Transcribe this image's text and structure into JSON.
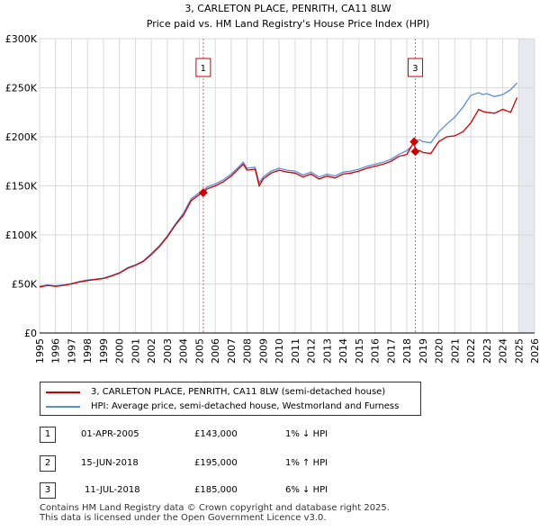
{
  "chart_data": {
    "type": "line",
    "title": "3, CARLETON PLACE, PENRITH, CA11 8LW",
    "subtitle": "Price paid vs. HM Land Registry's House Price Index (HPI)",
    "xlim": [
      1995,
      2026
    ],
    "ylim": [
      0,
      300000
    ],
    "x_ticks": [
      "1995",
      "1996",
      "1997",
      "1998",
      "1999",
      "2000",
      "2001",
      "2002",
      "2003",
      "2004",
      "2005",
      "2006",
      "2007",
      "2008",
      "2009",
      "2010",
      "2011",
      "2012",
      "2013",
      "2014",
      "2015",
      "2016",
      "2017",
      "2018",
      "2019",
      "2020",
      "2021",
      "2022",
      "2023",
      "2024",
      "2025",
      "2026"
    ],
    "y_ticks": [
      {
        "value": 0,
        "label": "£0"
      },
      {
        "value": 50000,
        "label": "£50K"
      },
      {
        "value": 100000,
        "label": "£100K"
      },
      {
        "value": 150000,
        "label": "£150K"
      },
      {
        "value": 200000,
        "label": "£200K"
      },
      {
        "value": 250000,
        "label": "£250K"
      },
      {
        "value": 300000,
        "label": "£300K"
      }
    ],
    "series": [
      {
        "name": "3, CARLETON PLACE, PENRITH, CA11 8LW (semi-detached house)",
        "color": "#cc0000",
        "points": [
          [
            1995.0,
            47000
          ],
          [
            1995.5,
            48500
          ],
          [
            1996.0,
            47500
          ],
          [
            1996.5,
            48500
          ],
          [
            1997.0,
            50000
          ],
          [
            1997.5,
            52000
          ],
          [
            1998.0,
            53500
          ],
          [
            1998.5,
            54500
          ],
          [
            1999.0,
            55500
          ],
          [
            1999.5,
            58000
          ],
          [
            2000.0,
            61000
          ],
          [
            2000.5,
            66000
          ],
          [
            2001.0,
            69000
          ],
          [
            2001.5,
            73000
          ],
          [
            2002.0,
            80000
          ],
          [
            2002.5,
            88000
          ],
          [
            2003.0,
            98000
          ],
          [
            2003.5,
            110000
          ],
          [
            2004.0,
            120000
          ],
          [
            2004.5,
            135000
          ],
          [
            2005.0,
            141000
          ],
          [
            2005.25,
            143000
          ],
          [
            2005.5,
            147000
          ],
          [
            2006.0,
            150000
          ],
          [
            2006.5,
            154000
          ],
          [
            2007.0,
            160000
          ],
          [
            2007.5,
            168000
          ],
          [
            2007.75,
            172000
          ],
          [
            2008.0,
            166000
          ],
          [
            2008.5,
            167000
          ],
          [
            2008.75,
            150000
          ],
          [
            2009.0,
            157000
          ],
          [
            2009.5,
            163000
          ],
          [
            2010.0,
            166000
          ],
          [
            2010.5,
            164000
          ],
          [
            2011.0,
            163000
          ],
          [
            2011.5,
            159000
          ],
          [
            2012.0,
            162000
          ],
          [
            2012.5,
            157000
          ],
          [
            2013.0,
            160000
          ],
          [
            2013.5,
            158000
          ],
          [
            2014.0,
            162000
          ],
          [
            2014.5,
            163000
          ],
          [
            2015.0,
            165000
          ],
          [
            2015.5,
            168000
          ],
          [
            2016.0,
            170000
          ],
          [
            2016.5,
            172000
          ],
          [
            2017.0,
            175000
          ],
          [
            2017.5,
            180000
          ],
          [
            2018.0,
            182000
          ],
          [
            2018.46,
            195000
          ],
          [
            2018.53,
            185000
          ],
          [
            2018.8,
            186000
          ],
          [
            2019.0,
            184000
          ],
          [
            2019.5,
            183000
          ],
          [
            2020.0,
            195000
          ],
          [
            2020.5,
            200000
          ],
          [
            2021.0,
            201000
          ],
          [
            2021.5,
            205000
          ],
          [
            2022.0,
            214000
          ],
          [
            2022.5,
            228000
          ],
          [
            2022.75,
            226000
          ],
          [
            2023.0,
            225000
          ],
          [
            2023.5,
            224000
          ],
          [
            2024.0,
            228000
          ],
          [
            2024.5,
            225000
          ],
          [
            2024.9,
            240000
          ]
        ]
      },
      {
        "name": "HPI: Average price, semi-detached house, Westmorland and Furness",
        "color": "#5b8fd4",
        "points": [
          [
            1995.0,
            47500
          ],
          [
            1995.5,
            49000
          ],
          [
            1996.0,
            48000
          ],
          [
            1996.5,
            49000
          ],
          [
            1997.0,
            50500
          ],
          [
            1997.5,
            52500
          ],
          [
            1998.0,
            54000
          ],
          [
            1998.5,
            55000
          ],
          [
            1999.0,
            56000
          ],
          [
            1999.5,
            58500
          ],
          [
            2000.0,
            61500
          ],
          [
            2000.5,
            66500
          ],
          [
            2001.0,
            69500
          ],
          [
            2001.5,
            73500
          ],
          [
            2002.0,
            81000
          ],
          [
            2002.5,
            89000
          ],
          [
            2003.0,
            99000
          ],
          [
            2003.5,
            111000
          ],
          [
            2004.0,
            122000
          ],
          [
            2004.5,
            137000
          ],
          [
            2005.0,
            143000
          ],
          [
            2005.25,
            145000
          ],
          [
            2005.5,
            149000
          ],
          [
            2006.0,
            152000
          ],
          [
            2006.5,
            156000
          ],
          [
            2007.0,
            162000
          ],
          [
            2007.5,
            170000
          ],
          [
            2007.75,
            174000
          ],
          [
            2008.0,
            168000
          ],
          [
            2008.5,
            169000
          ],
          [
            2008.75,
            153000
          ],
          [
            2009.0,
            159000
          ],
          [
            2009.5,
            165000
          ],
          [
            2010.0,
            168000
          ],
          [
            2010.5,
            166000
          ],
          [
            2011.0,
            165000
          ],
          [
            2011.5,
            161000
          ],
          [
            2012.0,
            164000
          ],
          [
            2012.5,
            159000
          ],
          [
            2013.0,
            162000
          ],
          [
            2013.5,
            160000
          ],
          [
            2014.0,
            164000
          ],
          [
            2014.5,
            165000
          ],
          [
            2015.0,
            167000
          ],
          [
            2015.5,
            170000
          ],
          [
            2016.0,
            172000
          ],
          [
            2016.5,
            174000
          ],
          [
            2017.0,
            177000
          ],
          [
            2017.5,
            182000
          ],
          [
            2018.0,
            186000
          ],
          [
            2018.46,
            193000
          ],
          [
            2018.53,
            196000
          ],
          [
            2018.8,
            197000
          ],
          [
            2019.0,
            195000
          ],
          [
            2019.5,
            194000
          ],
          [
            2020.0,
            205000
          ],
          [
            2020.5,
            213000
          ],
          [
            2021.0,
            220000
          ],
          [
            2021.5,
            230000
          ],
          [
            2022.0,
            242000
          ],
          [
            2022.5,
            245000
          ],
          [
            2022.75,
            243000
          ],
          [
            2023.0,
            244000
          ],
          [
            2023.5,
            241000
          ],
          [
            2024.0,
            243000
          ],
          [
            2024.5,
            248000
          ],
          [
            2024.9,
            255000
          ]
        ]
      }
    ],
    "markers": [
      {
        "label": "1",
        "x": 2005.25,
        "y": 143000
      },
      {
        "label": "2",
        "x": 2018.46,
        "y": 195000
      },
      {
        "label": "3",
        "x": 2018.53,
        "y": 185000
      }
    ],
    "boxed_markers": [
      {
        "label": "1",
        "x": 2005.25
      },
      {
        "label": "3",
        "x": 2018.53
      }
    ],
    "future_from": 2025.0
  },
  "legend": {
    "red_label": "3, CARLETON PLACE, PENRITH, CA11 8LW (semi-detached house)",
    "blue_label": "HPI: Average price, semi-detached house, Westmorland and Furness"
  },
  "transactions": [
    {
      "num": "1",
      "date": "01-APR-2005",
      "price": "£143,000",
      "hpi": "1% ↓ HPI"
    },
    {
      "num": "2",
      "date": "15-JUN-2018",
      "price": "£195,000",
      "hpi": "1% ↑ HPI"
    },
    {
      "num": "3",
      "date": "11-JUL-2018",
      "price": "£185,000",
      "hpi": "6% ↓ HPI"
    }
  ],
  "footer": {
    "line1": "Contains HM Land Registry data © Crown copyright and database right 2025.",
    "line2": "This data is licensed under the Open Government Licence v3.0."
  },
  "colors": {
    "red": "#cc0000",
    "blue": "#5b8fd4",
    "grid": "#d9d9d9",
    "plot_bg": "#ffffff",
    "future_bg": "#e8e8f0"
  }
}
